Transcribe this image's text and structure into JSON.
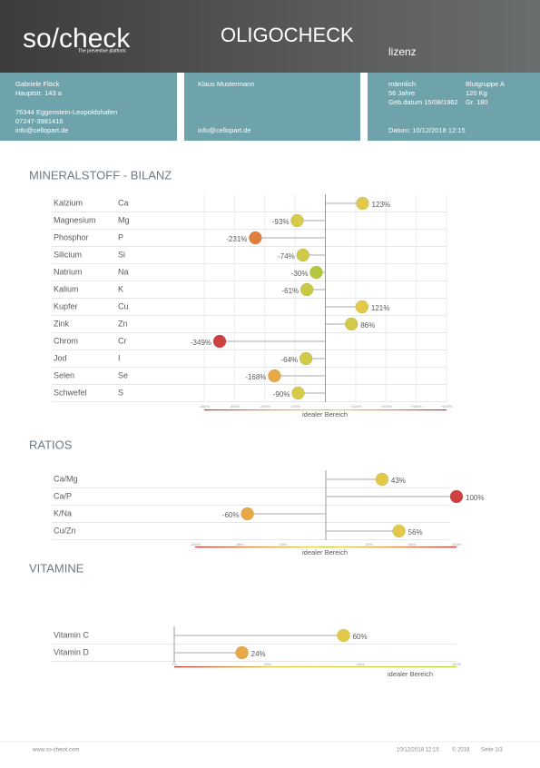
{
  "header": {
    "logo": "so/check",
    "tagline": "The preventive platform",
    "title": "OLIGOCHECK",
    "subtitle": "lizenz"
  },
  "therapist": {
    "name": "Gabriele Flöck",
    "street": "Hauptstr. 143 a",
    "city": "76344 Eggenstein-Leopoldshafen",
    "phone": "07247-3981416",
    "email": "info@cellopart.de"
  },
  "patient": {
    "name": "Klaus Mustermann",
    "email": "info@cellopart.de",
    "sex": "männlich",
    "age": "56 Jahre",
    "birth": "Geb.datum 15/08/1962",
    "blood": "Blutgruppe A",
    "weight": "120 Kg",
    "height": "Gr. 180",
    "date": "Datum: 10/12/2018 12:15"
  },
  "chart_data": [
    {
      "type": "lollipop",
      "title": "MINERALSTOFF - BILANZ",
      "categories": [
        "Kalzium",
        "Magnesium",
        "Phosphor",
        "Silicium",
        "Natrium",
        "Kalium",
        "Kupfer",
        "Zink",
        "Chrom",
        "Jod",
        "Selen",
        "Schwefel"
      ],
      "symbols": [
        "Ca",
        "Mg",
        "P",
        "Si",
        "Na",
        "K",
        "Cu",
        "Zn",
        "Cr",
        "I",
        "Se",
        "S"
      ],
      "values": [
        123,
        -93,
        -231,
        -74,
        -30,
        -61,
        121,
        86,
        -349,
        -64,
        -168,
        -90
      ],
      "value_labels": [
        "123%",
        "-93%",
        "-231%",
        "-74%",
        "-30%",
        "-61%",
        "121%",
        "86%",
        "-349%",
        "-64%",
        "-168%",
        "-90%"
      ],
      "colors": [
        "#e2c94a",
        "#d9cb4a",
        "#e07e3c",
        "#cfca48",
        "#b5c63e",
        "#c8c945",
        "#e2c94a",
        "#d4c84a",
        "#cf4040",
        "#cfca48",
        "#e8a848",
        "#d9cb4a"
      ],
      "xlim": [
        -400,
        400
      ],
      "xticks": [
        {
          "value": -400,
          "label": "-400%"
        },
        {
          "value": -300,
          "label": "-300%"
        },
        {
          "value": -200,
          "label": "-200%"
        },
        {
          "value": -100,
          "label": "-100%"
        },
        {
          "value": 100,
          "label": "+100%"
        },
        {
          "value": 200,
          "label": "+200%"
        },
        {
          "value": 300,
          "label": "+300%"
        },
        {
          "value": 400,
          "label": "+400%"
        }
      ],
      "xlabel": "idealer Bereich",
      "grid": true
    },
    {
      "type": "lollipop",
      "title": "RATIOS",
      "categories": [
        "Ca/Mg",
        "Ca/P",
        "K/Na",
        "Cu/Zn"
      ],
      "values": [
        43,
        100,
        -60,
        56
      ],
      "value_labels": [
        "43%",
        "100%",
        "-60%",
        "56%"
      ],
      "colors": [
        "#e2c94a",
        "#cf4040",
        "#e8a848",
        "#e2c94a"
      ],
      "xlim": [
        -100,
        100
      ],
      "xticks": [
        {
          "value": -100,
          "label": "-100%"
        },
        {
          "value": -66,
          "label": "-66%"
        },
        {
          "value": -33,
          "label": "-33%"
        },
        {
          "value": 33,
          "label": "33%"
        },
        {
          "value": 66,
          "label": "66%"
        },
        {
          "value": 100,
          "label": "100%"
        }
      ],
      "xlabel": "idealer Bereich",
      "grid": false
    },
    {
      "type": "lollipop",
      "title": "VITAMINE",
      "categories": [
        "Vitamin C",
        "Vitamin D"
      ],
      "values": [
        60,
        24
      ],
      "value_labels": [
        "60%",
        "24%"
      ],
      "colors": [
        "#e2c94a",
        "#e8a848"
      ],
      "xlim": [
        0,
        100
      ],
      "xticks": [
        {
          "value": 0,
          "label": "0%"
        },
        {
          "value": 33,
          "label": "33%"
        },
        {
          "value": 66,
          "label": "66%"
        },
        {
          "value": 100,
          "label": "100%"
        }
      ],
      "xlabel": "idealer Bereich",
      "grid": false
    }
  ],
  "footer": {
    "url": "www.so-check.com",
    "date": "10/12/2018 12:15",
    "copyright": "© 2018",
    "page": "Seite 1/3"
  }
}
